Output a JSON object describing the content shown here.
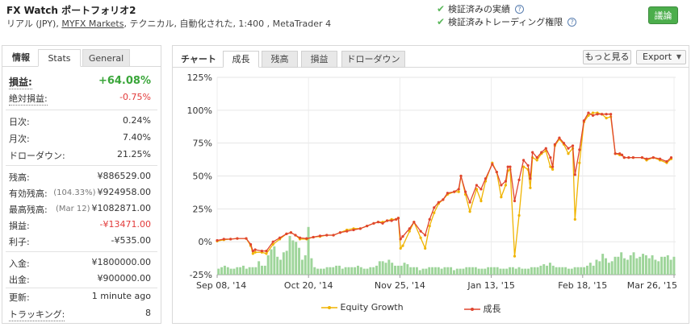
{
  "header": {
    "title": "FX Watch ポートフォリオ2",
    "subtitle_prefix": "リアル (JPY), ",
    "broker_link": "MYFX Markets",
    "subtitle_suffix": ", テクニカル, 自動化された, 1:400 , MetaTrader 4",
    "verified_track": "検証済みの実績",
    "verified_trading": "検証済みトレーディング権限",
    "discuss_button": "議論",
    "help_mark": "?",
    "check_mark": "✔"
  },
  "left_panel": {
    "tabs": [
      "情報",
      "Stats",
      "General"
    ],
    "rows": [
      {
        "label": "損益:",
        "value": "+64.08%"
      },
      {
        "label": "絶対損益:",
        "value": "-0.75%"
      },
      {
        "label": "日次:",
        "value": "0.24%"
      },
      {
        "label": "月次:",
        "value": "7.40%"
      },
      {
        "label": "ドローダウン:",
        "value": "21.25%"
      },
      {
        "label": "残高:",
        "value": "¥886529.00"
      },
      {
        "label": "有効残高:",
        "note": "(104.33%)",
        "value": "¥924958.00"
      },
      {
        "label": "最高残高:",
        "note": "(Mar 12)",
        "value": "¥1082871.00"
      },
      {
        "label": "損益:",
        "value": "-¥13471.00"
      },
      {
        "label": "利子:",
        "value": "-¥535.00"
      },
      {
        "label": "入金:",
        "value": "¥1800000.00"
      },
      {
        "label": "出金:",
        "value": "¥900000.00"
      },
      {
        "label": "更新:",
        "value": "1 minute ago"
      },
      {
        "label": "トラッキング:",
        "value": "8"
      }
    ]
  },
  "chart_panel": {
    "label": "チャート",
    "tabs": [
      "成長",
      "残高",
      "損益",
      "ドローダウン"
    ],
    "more_button": "もっと見る",
    "export_button": "Export",
    "dropdown_arrow": "▼"
  },
  "chart_data": {
    "type": "line",
    "ylim": [
      -25,
      125
    ],
    "y_ticks": [
      "-25%",
      "0%",
      "25%",
      "50%",
      "75%",
      "100%",
      "125%"
    ],
    "x_ticks": [
      "Sep 08, '14",
      "Oct 20, '14",
      "Nov 25, '14",
      "Jan 13, '15",
      "Feb 18, '15",
      "Mar 26, '15"
    ],
    "grid": true,
    "legend_position": "bottom",
    "colors": {
      "equity": "#f0b400",
      "growth": "#e0452f",
      "volume": "#9ed59a"
    },
    "series": [
      {
        "name": "Equity Growth",
        "x": [
          0,
          3,
          6,
          9,
          13,
          15,
          16,
          17,
          20,
          22,
          25,
          28,
          31,
          33,
          35,
          37,
          40,
          43,
          46,
          49,
          52,
          55,
          58,
          61,
          64,
          67,
          70,
          72,
          74,
          76,
          78,
          80,
          81,
          82,
          83,
          86,
          88,
          91,
          93,
          95,
          97,
          99,
          101,
          103,
          106,
          108,
          109,
          111,
          113,
          116,
          118,
          120,
          123,
          125,
          127,
          129,
          130,
          131,
          133,
          135,
          137,
          139,
          140,
          141,
          143,
          145,
          147,
          149,
          150,
          151,
          153,
          155,
          157,
          159,
          160,
          162,
          164,
          166,
          168,
          170,
          172,
          174,
          176,
          178,
          180,
          181,
          182,
          184,
          186,
          190,
          192,
          195,
          198,
          201,
          203
        ],
        "y": [
          0.5,
          1.5,
          2,
          2.5,
          2.5,
          -3,
          -9,
          -8,
          -8,
          -9,
          -2,
          2,
          6,
          7,
          5,
          2,
          2,
          3.5,
          4,
          5,
          5,
          7,
          9,
          10,
          10,
          12,
          14,
          15,
          15,
          16,
          17,
          17,
          18,
          -5,
          -3,
          8,
          15,
          3,
          -5,
          12,
          22,
          29,
          32,
          36,
          38,
          38,
          50,
          36,
          23,
          40,
          31,
          46,
          60,
          53,
          34,
          43,
          54,
          55,
          -11,
          20,
          57,
          55,
          41,
          64,
          62,
          67,
          69,
          57,
          55,
          73,
          78,
          74,
          67,
          71,
          17,
          60,
          91,
          96,
          98,
          98,
          97,
          94,
          95,
          67,
          66,
          66,
          64,
          64,
          64,
          64,
          62,
          64,
          62,
          60,
          63
        ]
      },
      {
        "name": "成長",
        "x": [
          0,
          3,
          6,
          9,
          13,
          15,
          16,
          17,
          20,
          22,
          25,
          28,
          31,
          33,
          35,
          37,
          40,
          43,
          46,
          49,
          52,
          55,
          58,
          61,
          64,
          67,
          70,
          72,
          74,
          76,
          78,
          80,
          81,
          82,
          83,
          86,
          88,
          91,
          93,
          95,
          97,
          99,
          101,
          103,
          106,
          108,
          109,
          111,
          113,
          116,
          118,
          120,
          123,
          125,
          127,
          129,
          130,
          131,
          133,
          135,
          137,
          139,
          140,
          141,
          143,
          145,
          147,
          149,
          150,
          151,
          153,
          155,
          157,
          159,
          160,
          162,
          164,
          166,
          168,
          170,
          172,
          174,
          176,
          178,
          180,
          181,
          182,
          184,
          186,
          190,
          192,
          195,
          198,
          201,
          203
        ],
        "y": [
          1,
          2,
          2,
          2.5,
          2.5,
          -2,
          -7,
          -6,
          -7,
          -7,
          0,
          3,
          6,
          7,
          5,
          3,
          2.5,
          3.5,
          4.5,
          5,
          5,
          7,
          8,
          9,
          10,
          12,
          14,
          15,
          14,
          16,
          16,
          17,
          18,
          2,
          4,
          10,
          15,
          8,
          5,
          17,
          26,
          30,
          32,
          37,
          38,
          40,
          50,
          38,
          30,
          43,
          40,
          48,
          59,
          53,
          43,
          46,
          57,
          57,
          31,
          47,
          62,
          58,
          48,
          68,
          64,
          68,
          71,
          64,
          57,
          74,
          79,
          75,
          71,
          73,
          51,
          70,
          92,
          98,
          96,
          97,
          97,
          97,
          97,
          67,
          67,
          66,
          64,
          64,
          64,
          64,
          63,
          64,
          63,
          61,
          64
        ]
      }
    ],
    "volume": [
      4,
      5,
      6,
      5,
      4,
      4,
      5,
      5,
      6,
      4,
      5,
      5,
      5,
      9,
      6,
      6,
      13,
      17,
      19,
      12,
      10,
      15,
      16,
      26,
      23,
      22,
      18,
      10,
      13,
      32,
      11,
      5,
      4,
      4,
      4,
      5,
      5,
      5,
      6,
      6,
      4,
      5,
      5,
      5,
      5,
      6,
      5,
      4,
      4,
      5,
      5,
      6,
      9,
      9,
      8,
      10,
      8,
      6,
      6,
      6,
      8,
      7,
      5,
      5,
      5,
      3,
      4,
      4,
      5,
      5,
      5,
      5,
      4,
      5,
      5,
      5,
      3,
      4,
      4,
      4,
      5,
      5,
      5,
      5,
      4,
      4,
      4,
      5,
      5,
      5,
      5,
      4,
      4,
      4,
      5,
      5,
      4,
      5,
      4,
      4,
      4,
      5,
      5,
      5,
      6,
      7,
      6,
      8,
      6,
      5,
      5,
      5,
      5,
      4,
      4,
      5,
      5,
      5,
      5,
      6,
      8,
      6,
      10,
      9,
      14,
      11,
      8,
      9,
      12,
      12,
      15,
      11,
      10,
      13,
      15,
      11,
      12,
      14,
      13,
      11,
      13,
      10,
      9,
      12,
      12,
      13,
      10,
      12
    ]
  }
}
